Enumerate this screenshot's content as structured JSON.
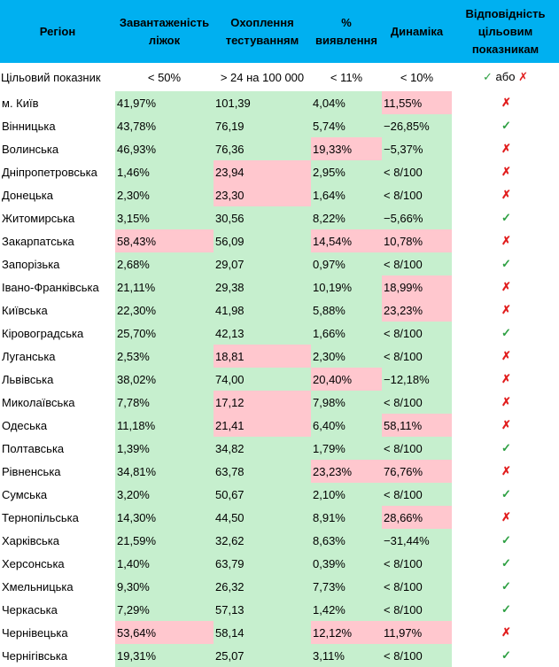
{
  "table": {
    "headers": [
      "Регіон",
      "Завантаженість ліжок",
      "Охоплення тестуванням",
      "% виявлення",
      "Динаміка",
      "Відповідність цільовим показникам"
    ],
    "target": {
      "label": "Цільовий показник",
      "beds": "< 50%",
      "testing": "> 24 на 100 000",
      "detection": "< 11%",
      "dynamics": "< 10%",
      "mark_ok": "✓",
      "mark_or": "або",
      "mark_fail": "✗"
    },
    "rows": [
      {
        "region": "м. Київ",
        "beds": "41,97%",
        "testing": "101,39",
        "detection": "4,04%",
        "dynamics": "11,55%",
        "mark": "✗"
      },
      {
        "region": "Вінницька",
        "beds": "43,78%",
        "testing": "76,19",
        "detection": "5,74%",
        "dynamics": "−26,85%",
        "mark": "✓"
      },
      {
        "region": "Волинська",
        "beds": "46,93%",
        "testing": "76,36",
        "detection": "19,33%",
        "dynamics": "−5,37%",
        "mark": "✗"
      },
      {
        "region": "Дніпропетровська",
        "beds": "1,46%",
        "testing": "23,94",
        "detection": "2,95%",
        "dynamics": "< 8/100",
        "mark": "✗"
      },
      {
        "region": "Донецька",
        "beds": "2,30%",
        "testing": "23,30",
        "detection": "1,64%",
        "dynamics": "< 8/100",
        "mark": "✗"
      },
      {
        "region": "Житомирська",
        "beds": "3,15%",
        "testing": "30,56",
        "detection": "8,22%",
        "dynamics": "−5,66%",
        "mark": "✓"
      },
      {
        "region": "Закарпатська",
        "beds": "58,43%",
        "testing": "56,09",
        "detection": "14,54%",
        "dynamics": "10,78%",
        "mark": "✗"
      },
      {
        "region": "Запорізька",
        "beds": "2,68%",
        "testing": "29,07",
        "detection": "0,97%",
        "dynamics": "< 8/100",
        "mark": "✓"
      },
      {
        "region": "Івано-Франківська",
        "beds": "21,11%",
        "testing": "29,38",
        "detection": "10,19%",
        "dynamics": "18,99%",
        "mark": "✗"
      },
      {
        "region": "Київська",
        "beds": "22,30%",
        "testing": "41,98",
        "detection": "5,88%",
        "dynamics": "23,23%",
        "mark": "✗"
      },
      {
        "region": "Кіровоградська",
        "beds": "25,70%",
        "testing": "42,13",
        "detection": "1,66%",
        "dynamics": "< 8/100",
        "mark": "✓"
      },
      {
        "region": "Луганська",
        "beds": "2,53%",
        "testing": "18,81",
        "detection": "2,30%",
        "dynamics": "< 8/100",
        "mark": "✗"
      },
      {
        "region": "Львівська",
        "beds": "38,02%",
        "testing": "74,00",
        "detection": "20,40%",
        "dynamics": "−12,18%",
        "mark": "✗"
      },
      {
        "region": "Миколаївська",
        "beds": "7,78%",
        "testing": "17,12",
        "detection": "7,98%",
        "dynamics": "< 8/100",
        "mark": "✗"
      },
      {
        "region": "Одеська",
        "beds": "11,18%",
        "testing": "21,41",
        "detection": "6,40%",
        "dynamics": "58,11%",
        "mark": "✗"
      },
      {
        "region": "Полтавська",
        "beds": "1,39%",
        "testing": "34,82",
        "detection": "1,79%",
        "dynamics": "< 8/100",
        "mark": "✓"
      },
      {
        "region": "Рівненська",
        "beds": "34,81%",
        "testing": "63,78",
        "detection": "23,23%",
        "dynamics": "76,76%",
        "mark": "✗"
      },
      {
        "region": "Сумська",
        "beds": "3,20%",
        "testing": "50,67",
        "detection": "2,10%",
        "dynamics": "< 8/100",
        "mark": "✓"
      },
      {
        "region": "Тернопільська",
        "beds": "14,30%",
        "testing": "44,50",
        "detection": "8,91%",
        "dynamics": "28,66%",
        "mark": "✗"
      },
      {
        "region": "Харківська",
        "beds": "21,59%",
        "testing": "32,62",
        "detection": "8,63%",
        "dynamics": "−31,44%",
        "mark": "✓"
      },
      {
        "region": "Херсонська",
        "beds": "1,40%",
        "testing": "63,79",
        "detection": "0,39%",
        "dynamics": "< 8/100",
        "mark": "✓"
      },
      {
        "region": "Хмельницька",
        "beds": "9,30%",
        "testing": "26,32",
        "detection": "7,73%",
        "dynamics": "< 8/100",
        "mark": "✓"
      },
      {
        "region": "Черкаська",
        "beds": "7,29%",
        "testing": "57,13",
        "detection": "1,42%",
        "dynamics": "< 8/100",
        "mark": "✓"
      },
      {
        "region": "Чернівецька",
        "beds": "53,64%",
        "testing": "58,14",
        "detection": "12,12%",
        "dynamics": "11,97%",
        "mark": "✗"
      },
      {
        "region": "Чернігівська",
        "beds": "19,31%",
        "testing": "25,07",
        "detection": "3,11%",
        "dynamics": "< 8/100",
        "mark": "✓"
      }
    ],
    "status": {
      "beds": [
        "ok",
        "ok",
        "ok",
        "ok",
        "ok",
        "ok",
        "bad",
        "ok",
        "ok",
        "ok",
        "ok",
        "ok",
        "ok",
        "ok",
        "ok",
        "ok",
        "ok",
        "ok",
        "ok",
        "ok",
        "ok",
        "ok",
        "ok",
        "bad",
        "ok"
      ],
      "testing": [
        "ok",
        "ok",
        "ok",
        "bad",
        "bad",
        "ok",
        "ok",
        "ok",
        "ok",
        "ok",
        "ok",
        "bad",
        "ok",
        "bad",
        "bad",
        "ok",
        "ok",
        "ok",
        "ok",
        "ok",
        "ok",
        "ok",
        "ok",
        "ok",
        "ok"
      ],
      "detection": [
        "ok",
        "ok",
        "bad",
        "ok",
        "ok",
        "ok",
        "bad",
        "ok",
        "ok",
        "ok",
        "ok",
        "ok",
        "bad",
        "ok",
        "ok",
        "ok",
        "bad",
        "ok",
        "ok",
        "ok",
        "ok",
        "ok",
        "ok",
        "bad",
        "ok"
      ],
      "dynamics": [
        "bad",
        "ok",
        "ok",
        "ok",
        "ok",
        "ok",
        "bad",
        "ok",
        "bad",
        "bad",
        "ok",
        "ok",
        "ok",
        "ok",
        "bad",
        "ok",
        "bad",
        "ok",
        "bad",
        "ok",
        "ok",
        "ok",
        "ok",
        "bad",
        "ok"
      ]
    },
    "colors": {
      "header_bg": "#00b0f0",
      "ok_bg": "#c6efce",
      "bad_bg": "#ffc7ce",
      "check": "#2ea043",
      "cross": "#e11d1d"
    }
  }
}
